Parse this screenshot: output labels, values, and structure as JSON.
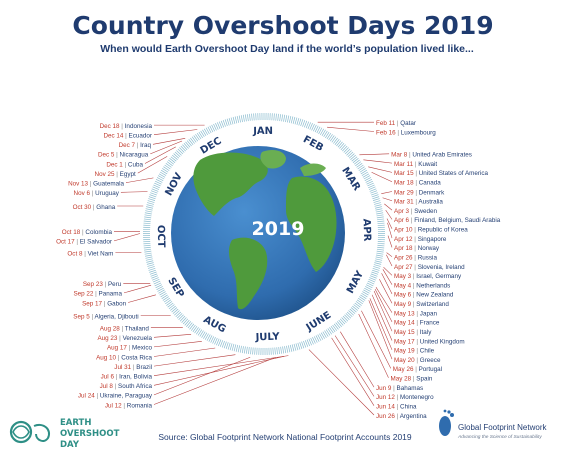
{
  "title": "Country Overshoot Days 2019",
  "subtitle": "When would Earth Overshoot Day land if the world’s population lived like...",
  "center_year": "2019",
  "months": [
    "JAN",
    "FEB",
    "MAR",
    "APR",
    "MAY",
    "JUNE",
    "JULY",
    "AUG",
    "SEP",
    "OCT",
    "NOV",
    "DEC"
  ],
  "entries": [
    {
      "date": "Feb 11",
      "country": "Qatar"
    },
    {
      "date": "Feb 16",
      "country": "Luxembourg"
    },
    {
      "date": "Mar 8",
      "country": "United Arab Emirates"
    },
    {
      "date": "Mar 11",
      "country": "Kuwait"
    },
    {
      "date": "Mar 15",
      "country": "United States of America"
    },
    {
      "date": "Mar 18",
      "country": "Canada"
    },
    {
      "date": "Mar 29",
      "country": "Denmark"
    },
    {
      "date": "Mar 31",
      "country": "Australia"
    },
    {
      "date": "Apr 3",
      "country": "Sweden"
    },
    {
      "date": "Apr 6",
      "country": "Finland, Belgium, Saudi Arabia"
    },
    {
      "date": "Apr 10",
      "country": "Republic of Korea"
    },
    {
      "date": "Apr 12",
      "country": "Singapore"
    },
    {
      "date": "Apr 18",
      "country": "Norway"
    },
    {
      "date": "Apr 26",
      "country": "Russia"
    },
    {
      "date": "Apr 27",
      "country": "Slovenia, Ireland"
    },
    {
      "date": "May 3",
      "country": "Israel, Germany"
    },
    {
      "date": "May 4",
      "country": "Netherlands"
    },
    {
      "date": "May 6",
      "country": "New Zealand"
    },
    {
      "date": "May 9",
      "country": "Switzerland"
    },
    {
      "date": "May 13",
      "country": "Japan"
    },
    {
      "date": "May 14",
      "country": "France"
    },
    {
      "date": "May 15",
      "country": "Italy"
    },
    {
      "date": "May 17",
      "country": "United Kingdom"
    },
    {
      "date": "May 19",
      "country": "Chile"
    },
    {
      "date": "May 20",
      "country": "Greece"
    },
    {
      "date": "May 26",
      "country": "Portugal"
    },
    {
      "date": "May 28",
      "country": "Spain"
    },
    {
      "date": "Jun 9",
      "country": "Bahamas"
    },
    {
      "date": "Jun 12",
      "country": "Montenegro"
    },
    {
      "date": "Jun 14",
      "country": "China"
    },
    {
      "date": "Jun 26",
      "country": "Argentina"
    },
    {
      "date": "Jul 6",
      "country": "Iran, Bolivia"
    },
    {
      "date": "Jul 8",
      "country": "South Africa"
    },
    {
      "date": "Jul 12",
      "country": "Romania"
    },
    {
      "date": "Jul 24",
      "country": "Ukraine, Paraguay"
    },
    {
      "date": "Jul 31",
      "country": "Brazil"
    },
    {
      "date": "Aug 10",
      "country": "Costa Rica"
    },
    {
      "date": "Aug 17",
      "country": "Mexico"
    },
    {
      "date": "Aug 23",
      "country": "Venezuela"
    },
    {
      "date": "Aug 28",
      "country": "Thailand"
    },
    {
      "date": "Sep 5",
      "country": "Algeria, Djibouti"
    },
    {
      "date": "Sep 17",
      "country": "Gabon"
    },
    {
      "date": "Sep 22",
      "country": "Panama"
    },
    {
      "date": "Sep 23",
      "country": "Peru"
    },
    {
      "date": "Oct 8",
      "country": "Viet Nam"
    },
    {
      "date": "Oct 17",
      "country": "El Salvador"
    },
    {
      "date": "Oct 18",
      "country": "Colombia"
    },
    {
      "date": "Oct 30",
      "country": "Ghana"
    },
    {
      "date": "Nov 6",
      "country": "Uruguay"
    },
    {
      "date": "Nov 13",
      "country": "Guatemala"
    },
    {
      "date": "Nov 25",
      "country": "Egypt"
    },
    {
      "date": "Dec 1",
      "country": "Cuba"
    },
    {
      "date": "Dec 5",
      "country": "Nicaragua"
    },
    {
      "date": "Dec 7",
      "country": "Iraq"
    },
    {
      "date": "Dec 14",
      "country": "Ecuador"
    },
    {
      "date": "Dec 18",
      "country": "Indonesia"
    }
  ],
  "source": "Source: Global Footprint Network National Footprint Accounts 2019",
  "logo_left": {
    "line1": "EARTH",
    "line2": "OVERSHOOT",
    "line3": "DAY"
  },
  "logo_right": {
    "line1": "Global Footprint Network",
    "line2": "Advancing the Science of Sustainability"
  },
  "colors": {
    "title": "#1f3b6f",
    "accent_red": "#c0392b",
    "ring": "#7fb3c8",
    "ocean": "#2f6cae",
    "land": "#4f9a3c",
    "leader": "#b33a3a",
    "logo_teal": "#2e8f86"
  },
  "icons": {
    "left_logo": "earth-overshoot-day-logo",
    "right_logo": "footprint-logo"
  }
}
